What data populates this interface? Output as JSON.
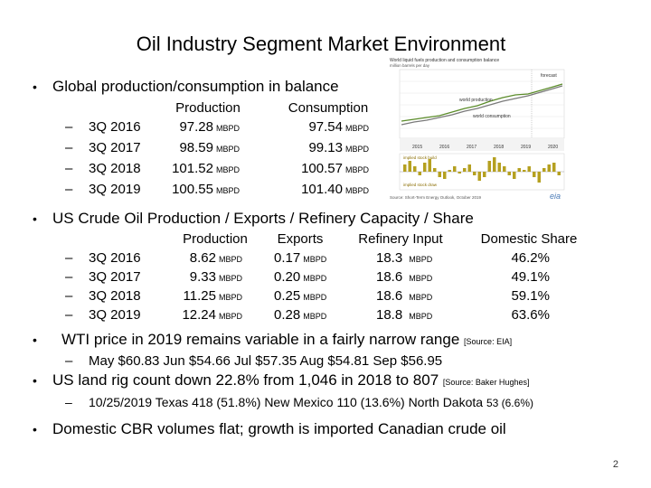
{
  "title": "Oil Industry Segment Market Environment",
  "bullet_glyph": "•",
  "dash_glyph": "–",
  "global": {
    "heading": "Global production/consumption in balance",
    "col_production": "Production",
    "col_consumption": "Consumption",
    "unit": "MBPD",
    "rows": [
      {
        "period": "3Q 2016",
        "production": "97.28",
        "consumption": "97.54"
      },
      {
        "period": "3Q 2017",
        "production": "98.59",
        "consumption": "99.13"
      },
      {
        "period": "3Q 2018",
        "production": "101.52",
        "consumption": "100.57"
      },
      {
        "period": "3Q 2019",
        "production": "100.55",
        "consumption": "101.40"
      }
    ]
  },
  "us": {
    "heading": "US Crude Oil Production / Exports / Refinery Capacity / Share",
    "col_production": "Production",
    "col_exports": "Exports",
    "col_refinery": "Refinery Input",
    "col_share": "Domestic Share",
    "unit": "MBPD",
    "rows": [
      {
        "period": "3Q 2016",
        "production": "8.62",
        "exports": "0.17",
        "refinery": "18.3",
        "share": "46.2%"
      },
      {
        "period": "3Q 2017",
        "production": "9.33",
        "exports": "0.20",
        "refinery": "18.6",
        "share": "49.1%"
      },
      {
        "period": "3Q 2018",
        "production": "11.25",
        "exports": "0.25",
        "refinery": "18.6",
        "share": "59.1%"
      },
      {
        "period": "3Q 2019",
        "production": "12.24",
        "exports": "0.28",
        "refinery": "18.8",
        "share": "63.6%"
      }
    ]
  },
  "wti": {
    "heading": "WTI price in 2019 remains variable in a fairly narrow range",
    "source": "[Source: EIA]",
    "prices": "May $60.83   Jun $54.66   Jul $57.35   Aug $54.81   Sep $56.95"
  },
  "rig": {
    "heading": "US land rig count down 22.8% from 1,046 in 2018 to 807",
    "source": "[Source:  Baker Hughes]",
    "detail_main": "10/25/2019 Texas 418 (51.8%) New Mexico 110 (13.6%) North Dakota ",
    "detail_small": "53 (6.6%)"
  },
  "cbr": {
    "heading": "Domestic CBR volumes flat; growth is imported Canadian crude oil"
  },
  "page_number": "2",
  "chart_image": {
    "title_line1": "World liquid fuels production and consumption balance",
    "title_line2": "million barrels per day",
    "label_forecast": "forecast",
    "label_production": "world production",
    "label_consumption": "world consumption",
    "label_stock_draw": "implied stock build",
    "label_stock_build": "implied stock draw",
    "years": [
      "2015",
      "2016",
      "2017",
      "2018",
      "2019",
      "2020"
    ],
    "source": "Source: Short-Term Energy Outlook, October 2019",
    "logo": "eia",
    "colors": {
      "production": "#5b8c2a",
      "consumption": "#7a7a7a",
      "bars": "#b5a020"
    }
  }
}
